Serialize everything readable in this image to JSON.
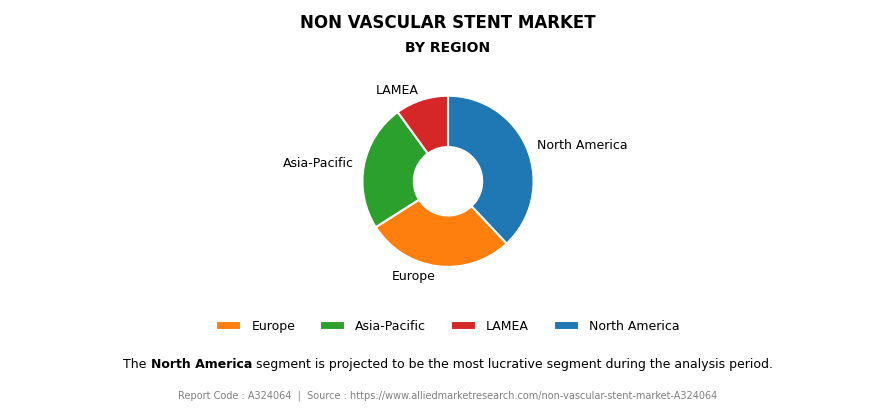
{
  "chart_data": {
    "type": "pie",
    "title": "NON VASCULAR STENT MARKET",
    "subtitle": "BY REGION",
    "categories": [
      "North America",
      "Europe",
      "Asia-Pacific",
      "LAMEA"
    ],
    "values": [
      38,
      28,
      24,
      10
    ],
    "legend": "lower center",
    "legend_entries": [
      "Europe",
      "Asia-Pacific",
      "LAMEA",
      "North America"
    ],
    "caption": [
      "The ",
      "North America",
      " segment is projected to be the most lucrative segment during the analysis period."
    ],
    "footer": "Report Code : A324064  |  Source : https://www.alliedmarketresearch.com/non-vascular-stent-market-A324064"
  }
}
